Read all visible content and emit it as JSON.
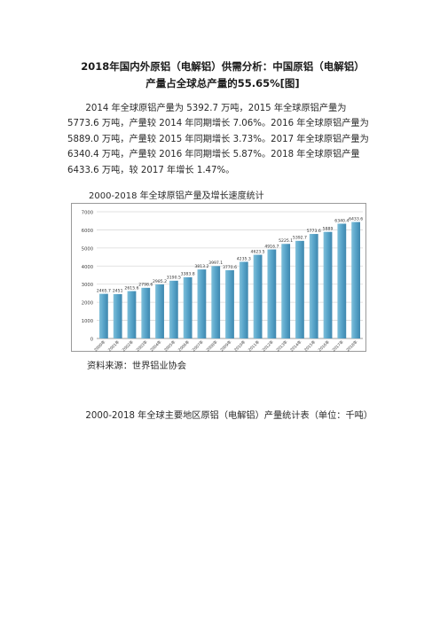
{
  "document": {
    "title": "2018年国内外原铝（电解铝）供需分析：中国原铝（电解铝）产量占全球总产量的55.65%[图]",
    "paragraph": "2014 年全球原铝产量为 5392.7 万吨，2015 年全球原铝产量为 5773.6 万吨，产量较 2014 年同期增长 7.06%。2016 年全球原铝产量为 5889.0 万吨，产量较 2015 年同期增长 3.73%。2017 年全球原铝产量为 6340.4 万吨，产量较 2016 年同期增长 5.87%。2018 年全球原铝产量 6433.6 万吨，较 2017 年增长 1.47%。",
    "chart_caption": "2000-2018 年全球原铝产量及增长速度统计",
    "source": "资料来源：世界铝业协会",
    "table_caption": "2000-2018 年全球主要地区原铝（电解铝）产量统计表（单位：千吨）"
  },
  "chart_data": {
    "type": "bar",
    "categories": [
      "2000年",
      "2001年",
      "2002年",
      "2003年",
      "2004年",
      "2005年",
      "2006年",
      "2007年",
      "2008年",
      "2009年",
      "2010年",
      "2011年",
      "2012年",
      "2013年",
      "2014年",
      "2015年",
      "2016年",
      "2017年",
      "2018年"
    ],
    "values": [
      2465.7,
      2451,
      2615.6,
      2798.6,
      2985.2,
      3190.5,
      3383.8,
      3813.2,
      3997.1,
      3770.6,
      4235.3,
      4623.5,
      4916.7,
      5225.1,
      5392.7,
      5773.6,
      5889,
      6340.4,
      6433.6
    ],
    "value_labels": [
      "2465.7",
      "2451",
      "2615.6",
      "2798.6",
      "2985.2",
      "3190.5",
      "3383.8",
      "3813.2",
      "3997.1",
      "3770.6",
      "4235.3",
      "4623.5",
      "4916.7",
      "5225.1",
      "5392.7",
      "5773.6",
      "5889",
      "6340.4",
      "6433.6"
    ],
    "yticks": [
      "0",
      "1000",
      "2000",
      "3000",
      "4000",
      "5000",
      "6000",
      "7000"
    ],
    "ylim": [
      0,
      7000
    ],
    "grid": true,
    "colors": {
      "bar": "#4f9ac0",
      "bar_light": "#7fbfd9",
      "grid": "#d9d9d9",
      "axis": "#7f7f7f"
    }
  }
}
